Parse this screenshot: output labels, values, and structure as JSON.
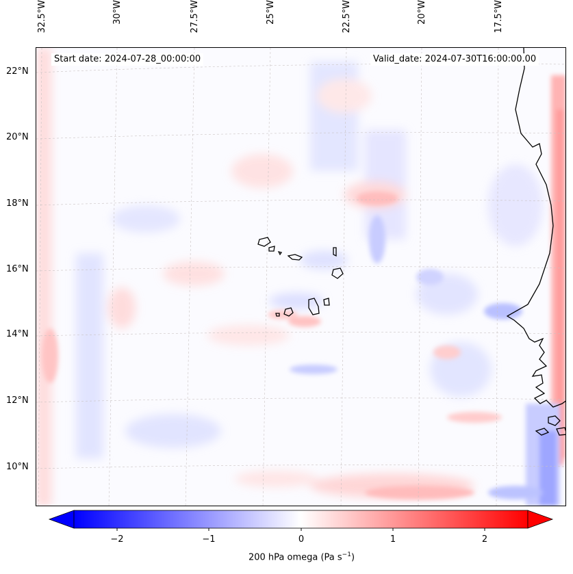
{
  "map": {
    "longitude_labels": [
      "32.5°W",
      "30°W",
      "27.5°W",
      "25°W",
      "22.5°W",
      "20°W",
      "17.5°W"
    ],
    "latitude_labels": [
      "22°N",
      "20°N",
      "18°N",
      "16°N",
      "14°N",
      "12°N",
      "10°N"
    ],
    "start_date": "Start date: 2024-07-28_00:00:00",
    "valid_date": "Valid_date: 2024-07-30T16:00:00.00",
    "field": "200 hPa omega",
    "gridlines": true,
    "coastlines": true
  },
  "colorbar": {
    "ticks": [
      "−2",
      "−1",
      "0",
      "1",
      "2"
    ],
    "label": "200 hPa omega (Pa s",
    "label_sup": "−1",
    "label_end": ")",
    "range": [
      -2.75,
      2.75
    ],
    "extend": "both",
    "colors": {
      "negative": "#0000ff",
      "zero": "#ffffff",
      "positive": "#ff0000"
    }
  }
}
